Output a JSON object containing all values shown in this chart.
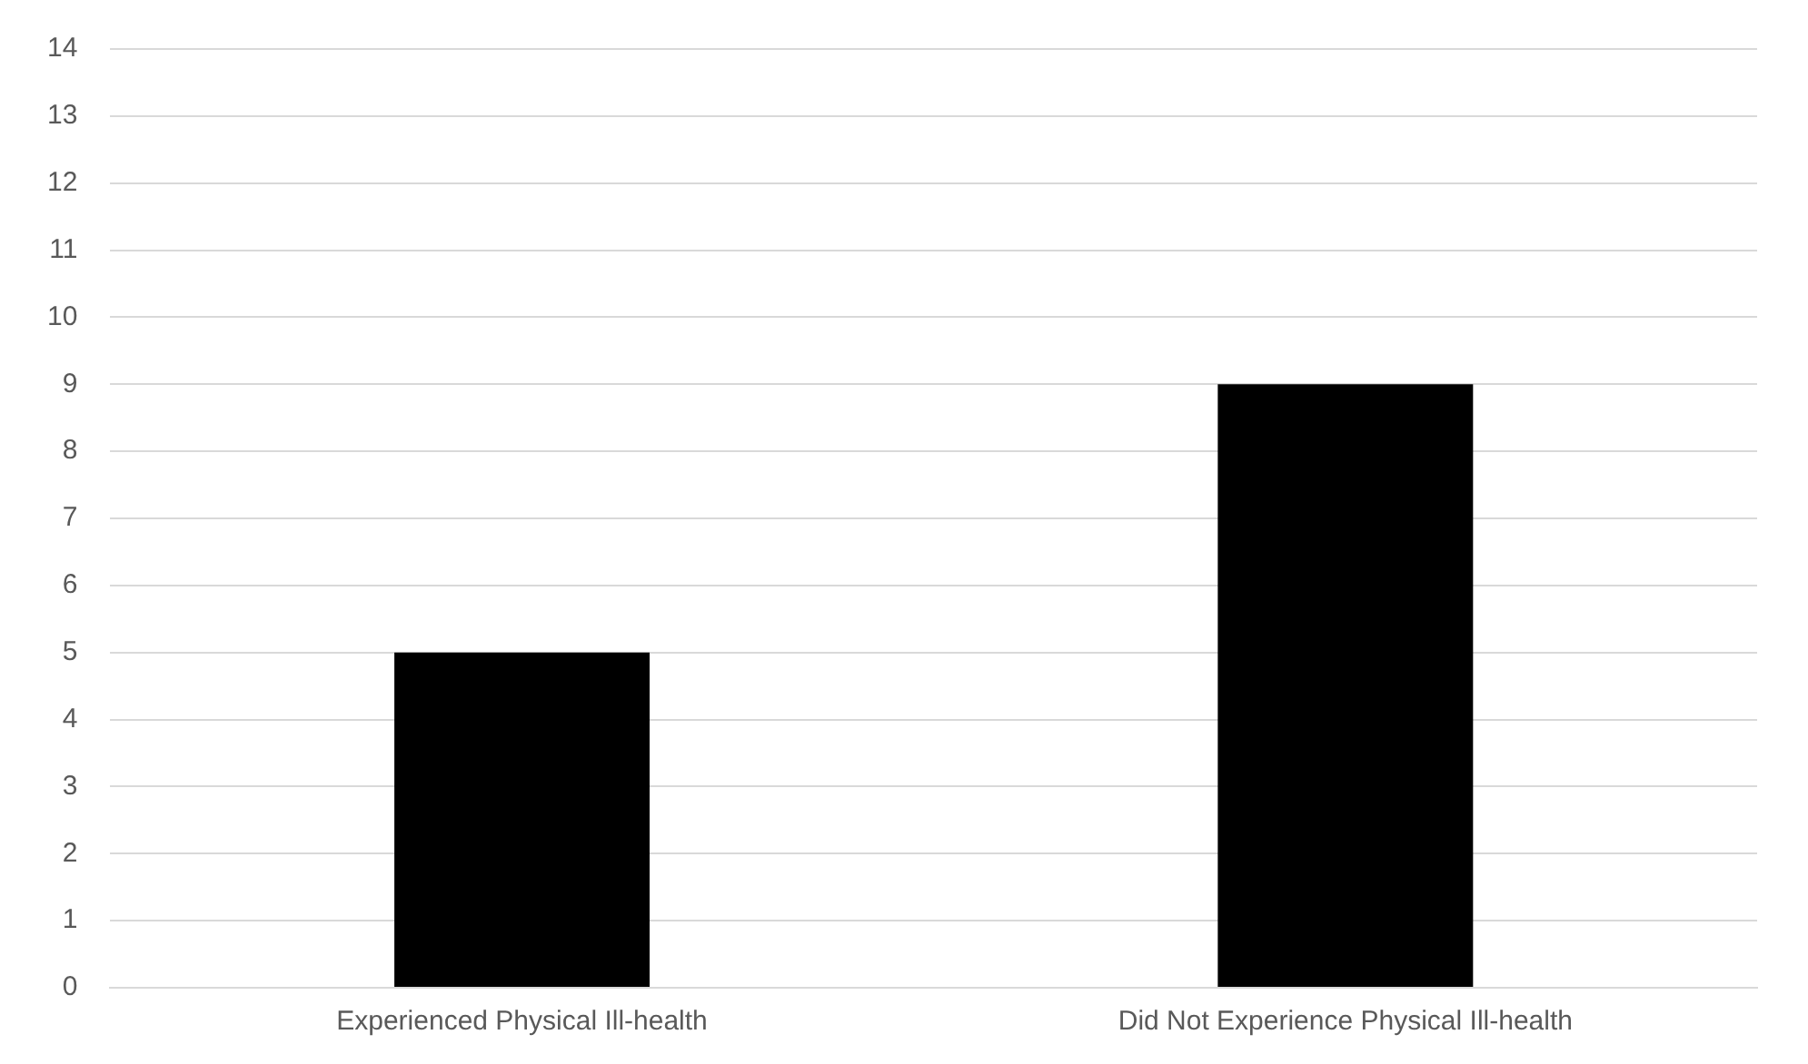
{
  "chart_data": {
    "type": "bar",
    "categories": [
      "Experienced Physical Ill-health",
      "Did Not Experience Physical Ill-health"
    ],
    "values": [
      5,
      9
    ],
    "color": "#000000",
    "ylim": [
      0,
      14
    ],
    "yticks": [
      0,
      1,
      2,
      3,
      4,
      5,
      6,
      7,
      8,
      9,
      10,
      11,
      12,
      13,
      14
    ],
    "grid": "y",
    "legend": false
  }
}
